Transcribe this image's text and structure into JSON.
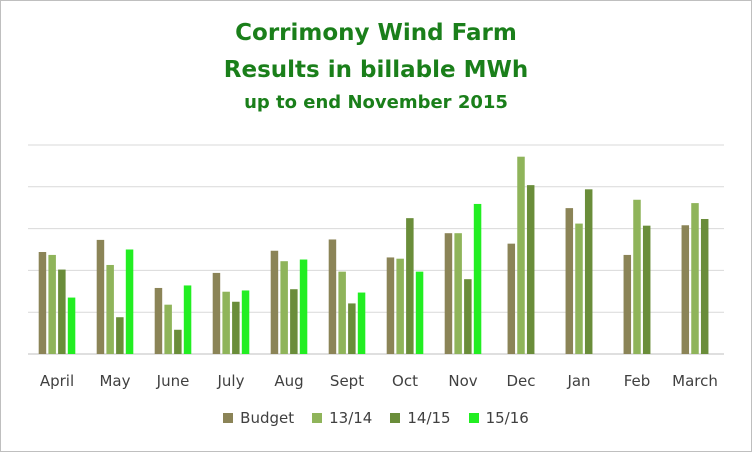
{
  "chart_data": {
    "type": "bar",
    "title": "Corrimony Wind Farm",
    "subtitle": "Results in billable MWh",
    "subtitle2": "up to end November 2015",
    "categories": [
      "April",
      "May",
      "June",
      "July",
      "Aug",
      "Sept",
      "Oct",
      "Nov",
      "Dec",
      "Jan",
      "Feb",
      "March"
    ],
    "ylim": [
      0,
      5
    ],
    "grid": true,
    "y_tick_labels_shown": false,
    "legend_position": "bottom",
    "series": [
      {
        "name": "Budget",
        "color": "#8b8457",
        "values": [
          2.44,
          2.73,
          1.58,
          1.94,
          2.47,
          2.74,
          2.31,
          2.89,
          2.64,
          3.49,
          2.37,
          3.08
        ]
      },
      {
        "name": "13/14",
        "color": "#8fb45a",
        "values": [
          2.37,
          2.13,
          1.18,
          1.49,
          2.22,
          1.97,
          2.28,
          2.89,
          4.72,
          3.12,
          3.69,
          3.61
        ]
      },
      {
        "name": "14/15",
        "color": "#6a8d3a",
        "values": [
          2.02,
          0.88,
          0.58,
          1.25,
          1.55,
          1.21,
          3.25,
          1.79,
          4.04,
          3.94,
          3.07,
          3.23
        ]
      },
      {
        "name": "15/16",
        "color": "#22ee22",
        "values": [
          1.35,
          2.5,
          1.64,
          1.52,
          2.26,
          1.47,
          1.97,
          3.59,
          null,
          null,
          null,
          null
        ]
      }
    ]
  }
}
